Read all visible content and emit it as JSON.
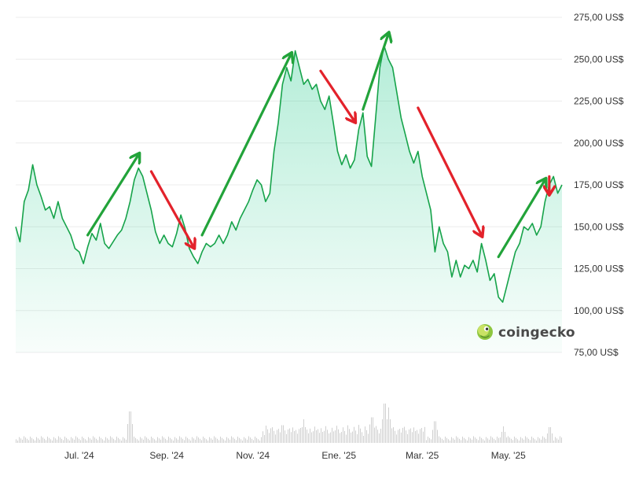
{
  "watermark": {
    "text": "coingecko",
    "icon": "gecko-icon"
  },
  "colors": {
    "line": "#16a34a",
    "fill_top": "#16c784",
    "grid": "#ececec",
    "volume": "#cfcfcf",
    "arrow_up": "#22a33a",
    "arrow_down": "#e3222b"
  },
  "chart_data": {
    "type": "area",
    "title": "",
    "xlabel": "",
    "ylabel": "",
    "ylim": [
      75,
      275
    ],
    "y_ticks": [
      {
        "value": 275,
        "label": "275,00 US$"
      },
      {
        "value": 250,
        "label": "250,00 US$"
      },
      {
        "value": 225,
        "label": "225,00 US$"
      },
      {
        "value": 200,
        "label": "200,00 US$"
      },
      {
        "value": 175,
        "label": "175,00 US$"
      },
      {
        "value": 150,
        "label": "150,00 US$"
      },
      {
        "value": 125,
        "label": "125,00 US$"
      },
      {
        "value": 100,
        "label": "100,00 US$"
      },
      {
        "value": 75,
        "label": "75,00 US$"
      }
    ],
    "x_ticks": [
      {
        "date": "2024-07-01",
        "label": "Jul. '24"
      },
      {
        "date": "2024-09-01",
        "label": "Sep. '24"
      },
      {
        "date": "2024-11-01",
        "label": "Nov. '24"
      },
      {
        "date": "2025-01-01",
        "label": "Ene. '25"
      },
      {
        "date": "2025-03-01",
        "label": "Mar. '25"
      },
      {
        "date": "2025-05-01",
        "label": "May. '25"
      }
    ],
    "x_range": [
      "2024-05-17",
      "2025-06-08"
    ],
    "grid": true,
    "series": [
      {
        "points": [
          [
            "2024-05-17",
            150
          ],
          [
            "2024-05-20",
            141
          ],
          [
            "2024-05-23",
            165
          ],
          [
            "2024-05-26",
            172
          ],
          [
            "2024-05-29",
            187
          ],
          [
            "2024-06-01",
            175
          ],
          [
            "2024-06-04",
            168
          ],
          [
            "2024-06-07",
            160
          ],
          [
            "2024-06-10",
            162
          ],
          [
            "2024-06-13",
            155
          ],
          [
            "2024-06-16",
            165
          ],
          [
            "2024-06-19",
            155
          ],
          [
            "2024-06-22",
            150
          ],
          [
            "2024-06-25",
            145
          ],
          [
            "2024-06-28",
            137
          ],
          [
            "2024-07-01",
            135
          ],
          [
            "2024-07-04",
            128
          ],
          [
            "2024-07-07",
            138
          ],
          [
            "2024-07-10",
            146
          ],
          [
            "2024-07-13",
            142
          ],
          [
            "2024-07-16",
            152
          ],
          [
            "2024-07-19",
            140
          ],
          [
            "2024-07-22",
            137
          ],
          [
            "2024-07-25",
            141
          ],
          [
            "2024-07-28",
            145
          ],
          [
            "2024-07-31",
            148
          ],
          [
            "2024-08-03",
            155
          ],
          [
            "2024-08-06",
            165
          ],
          [
            "2024-08-09",
            178
          ],
          [
            "2024-08-12",
            185
          ],
          [
            "2024-08-15",
            180
          ],
          [
            "2024-08-18",
            170
          ],
          [
            "2024-08-21",
            160
          ],
          [
            "2024-08-24",
            147
          ],
          [
            "2024-08-27",
            140
          ],
          [
            "2024-08-30",
            145
          ],
          [
            "2024-09-02",
            140
          ],
          [
            "2024-09-05",
            138
          ],
          [
            "2024-09-08",
            146
          ],
          [
            "2024-09-11",
            157
          ],
          [
            "2024-09-14",
            149
          ],
          [
            "2024-09-17",
            137
          ],
          [
            "2024-09-20",
            132
          ],
          [
            "2024-09-23",
            128
          ],
          [
            "2024-09-26",
            135
          ],
          [
            "2024-09-29",
            140
          ],
          [
            "2024-10-02",
            138
          ],
          [
            "2024-10-05",
            140
          ],
          [
            "2024-10-08",
            145
          ],
          [
            "2024-10-11",
            140
          ],
          [
            "2024-10-14",
            145
          ],
          [
            "2024-10-17",
            153
          ],
          [
            "2024-10-20",
            148
          ],
          [
            "2024-10-23",
            155
          ],
          [
            "2024-10-26",
            160
          ],
          [
            "2024-10-29",
            165
          ],
          [
            "2024-11-01",
            172
          ],
          [
            "2024-11-04",
            178
          ],
          [
            "2024-11-07",
            175
          ],
          [
            "2024-11-10",
            165
          ],
          [
            "2024-11-13",
            170
          ],
          [
            "2024-11-16",
            195
          ],
          [
            "2024-11-19",
            212
          ],
          [
            "2024-11-22",
            235
          ],
          [
            "2024-11-25",
            245
          ],
          [
            "2024-11-28",
            237
          ],
          [
            "2024-12-01",
            255
          ],
          [
            "2024-12-04",
            245
          ],
          [
            "2024-12-07",
            235
          ],
          [
            "2024-12-10",
            238
          ],
          [
            "2024-12-13",
            232
          ],
          [
            "2024-12-16",
            235
          ],
          [
            "2024-12-19",
            225
          ],
          [
            "2024-12-22",
            220
          ],
          [
            "2024-12-25",
            228
          ],
          [
            "2024-12-28",
            212
          ],
          [
            "2024-12-31",
            195
          ],
          [
            "2025-01-03",
            187
          ],
          [
            "2025-01-06",
            193
          ],
          [
            "2025-01-09",
            185
          ],
          [
            "2025-01-12",
            190
          ],
          [
            "2025-01-15",
            208
          ],
          [
            "2025-01-18",
            218
          ],
          [
            "2025-01-21",
            192
          ],
          [
            "2025-01-24",
            186
          ],
          [
            "2025-01-27",
            215
          ],
          [
            "2025-01-30",
            245
          ],
          [
            "2025-02-02",
            258
          ],
          [
            "2025-02-05",
            250
          ],
          [
            "2025-02-08",
            245
          ],
          [
            "2025-02-11",
            230
          ],
          [
            "2025-02-14",
            215
          ],
          [
            "2025-02-17",
            205
          ],
          [
            "2025-02-20",
            195
          ],
          [
            "2025-02-23",
            188
          ],
          [
            "2025-02-26",
            195
          ],
          [
            "2025-03-01",
            180
          ],
          [
            "2025-03-04",
            170
          ],
          [
            "2025-03-07",
            160
          ],
          [
            "2025-03-10",
            135
          ],
          [
            "2025-03-13",
            150
          ],
          [
            "2025-03-16",
            140
          ],
          [
            "2025-03-19",
            135
          ],
          [
            "2025-03-22",
            120
          ],
          [
            "2025-03-25",
            130
          ],
          [
            "2025-03-28",
            120
          ],
          [
            "2025-03-31",
            127
          ],
          [
            "2025-04-03",
            125
          ],
          [
            "2025-04-06",
            130
          ],
          [
            "2025-04-09",
            123
          ],
          [
            "2025-04-12",
            140
          ],
          [
            "2025-04-15",
            130
          ],
          [
            "2025-04-18",
            118
          ],
          [
            "2025-04-21",
            122
          ],
          [
            "2025-04-24",
            108
          ],
          [
            "2025-04-27",
            105
          ],
          [
            "2025-04-30",
            115
          ],
          [
            "2025-05-03",
            125
          ],
          [
            "2025-05-06",
            135
          ],
          [
            "2025-05-09",
            140
          ],
          [
            "2025-05-12",
            150
          ],
          [
            "2025-05-15",
            148
          ],
          [
            "2025-05-18",
            152
          ],
          [
            "2025-05-21",
            145
          ],
          [
            "2025-05-24",
            150
          ],
          [
            "2025-05-27",
            165
          ],
          [
            "2025-05-30",
            175
          ],
          [
            "2025-06-02",
            180
          ],
          [
            "2025-06-05",
            170
          ],
          [
            "2025-06-08",
            175
          ]
        ]
      }
    ],
    "volume": {
      "shown_without_axis": true,
      "spikes": [
        [
          "2024-08-06",
          0.8
        ],
        [
          "2024-11-22",
          0.45
        ],
        [
          "2024-12-07",
          0.5
        ],
        [
          "2025-01-24",
          0.65
        ],
        [
          "2025-02-02",
          1.0
        ],
        [
          "2025-02-05",
          0.75
        ],
        [
          "2025-03-10",
          0.55
        ],
        [
          "2025-04-27",
          0.35
        ],
        [
          "2025-05-30",
          0.4
        ]
      ]
    },
    "annotations": [
      {
        "direction": "up",
        "from": [
          "2024-07-07",
          145
        ],
        "to": [
          "2024-08-12",
          193
        ]
      },
      {
        "direction": "down",
        "from": [
          "2024-08-21",
          183
        ],
        "to": [
          "2024-09-20",
          138
        ]
      },
      {
        "direction": "up",
        "from": [
          "2024-09-26",
          145
        ],
        "to": [
          "2024-11-28",
          253
        ]
      },
      {
        "direction": "down",
        "from": [
          "2024-12-19",
          243
        ],
        "to": [
          "2025-01-12",
          213
        ]
      },
      {
        "direction": "up",
        "from": [
          "2025-01-18",
          220
        ],
        "to": [
          "2025-02-05",
          265
        ]
      },
      {
        "direction": "down",
        "from": [
          "2025-02-26",
          221
        ],
        "to": [
          "2025-04-12",
          145
        ]
      },
      {
        "direction": "up",
        "from": [
          "2025-04-24",
          132
        ],
        "to": [
          "2025-05-27",
          178
        ]
      },
      {
        "direction": "down",
        "from": [
          "2025-05-30",
          180
        ],
        "to": [
          "2025-05-30",
          170
        ]
      }
    ]
  }
}
